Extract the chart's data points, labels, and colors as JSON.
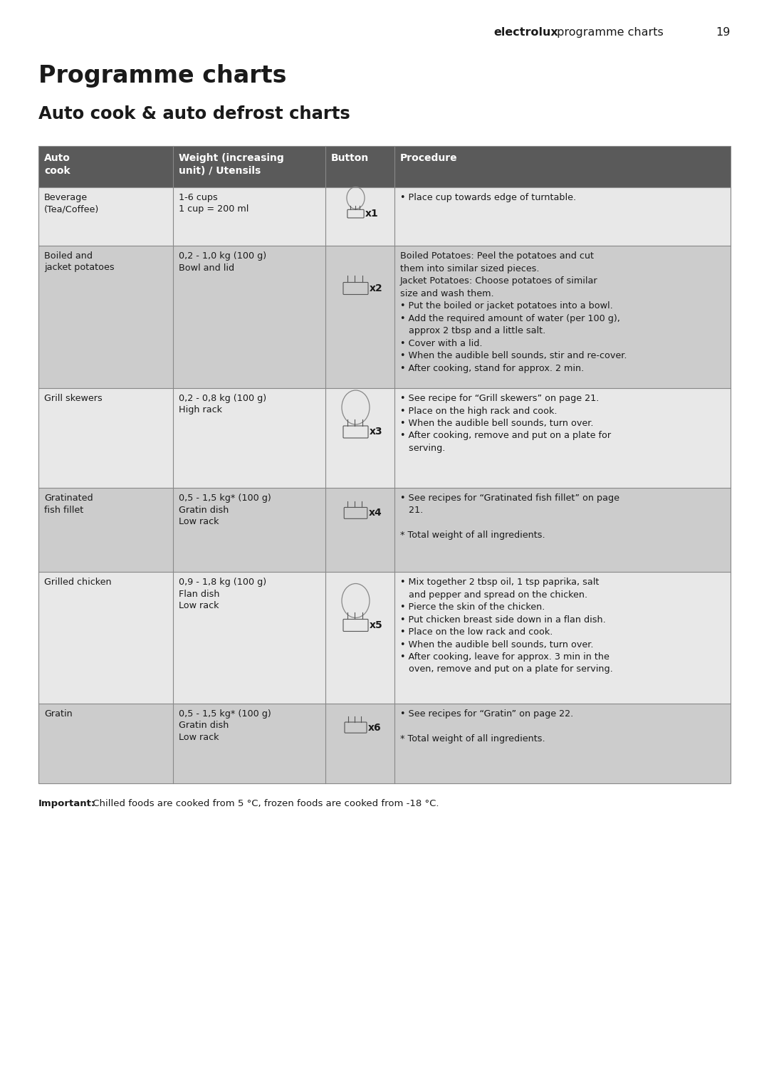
{
  "page_title_bold": "Programme charts",
  "page_subtitle": "Auto cook & auto defrost charts",
  "header_bold": "electrolux",
  "header_normal": " programme charts",
  "header_page": "19",
  "col_headers": [
    "Auto\ncook",
    "Weight (increasing\nunit) / Utensils",
    "Button",
    "Procedure"
  ],
  "rows": [
    {
      "auto_cook": "Beverage\n(Tea/Coffee)",
      "weight": "1-6 cups\n1 cup = 200 ml",
      "button": "x1",
      "has_circle": true,
      "procedure": "• Place cup towards edge of turntable.",
      "bg": "#e8e8e8"
    },
    {
      "auto_cook": "Boiled and\njacket potatoes",
      "weight": "0,2 - 1,0 kg (100 g)\nBowl and lid",
      "button": "x2",
      "has_circle": false,
      "procedure": "Boiled Potatoes: Peel the potatoes and cut\nthem into similar sized pieces.\nJacket Potatoes: Choose potatoes of similar\nsize and wash them.\n• Put the boiled or jacket potatoes into a bowl.\n• Add the required amount of water (per 100 g),\n   approx 2 tbsp and a little salt.\n• Cover with a lid.\n• When the audible bell sounds, stir and re-cover.\n• After cooking, stand for approx. 2 min.",
      "bg": "#cccccc"
    },
    {
      "auto_cook": "Grill skewers",
      "weight": "0,2 - 0,8 kg (100 g)\nHigh rack",
      "button": "x3",
      "has_circle": true,
      "procedure": "• See recipe for “Grill skewers” on page 21.\n• Place on the high rack and cook.\n• When the audible bell sounds, turn over.\n• After cooking, remove and put on a plate for\n   serving.",
      "bg": "#e8e8e8"
    },
    {
      "auto_cook": "Gratinated\nfish fillet",
      "weight": "0,5 - 1,5 kg* (100 g)\nGratin dish\nLow rack",
      "button": "x4",
      "has_circle": false,
      "procedure": "• See recipes for “Gratinated fish fillet” on page\n   21.\n\n* Total weight of all ingredients.",
      "bg": "#cccccc"
    },
    {
      "auto_cook": "Grilled chicken",
      "weight": "0,9 - 1,8 kg (100 g)\nFlan dish\nLow rack",
      "button": "x5",
      "has_circle": true,
      "procedure": "• Mix together 2 tbsp oil, 1 tsp paprika, salt\n   and pepper and spread on the chicken.\n• Pierce the skin of the chicken.\n• Put chicken breast side down in a flan dish.\n• Place on the low rack and cook.\n• When the audible bell sounds, turn over.\n• After cooking, leave for approx. 3 min in the\n   oven, remove and put on a plate for serving.",
      "bg": "#e8e8e8"
    },
    {
      "auto_cook": "Gratin",
      "weight": "0,5 - 1,5 kg* (100 g)\nGratin dish\nLow rack",
      "button": "x6",
      "has_circle": false,
      "procedure": "• See recipes for “Gratin” on page 22.\n\n* Total weight of all ingredients.",
      "bg": "#cccccc"
    }
  ],
  "important_bold": "Important:",
  "important_text": " Chilled foods are cooked from 5 °C, frozen foods are cooked from -18 °C.",
  "bg_color": "#ffffff",
  "header_row_bg": "#5a5a5a",
  "header_row_fg": "#ffffff"
}
